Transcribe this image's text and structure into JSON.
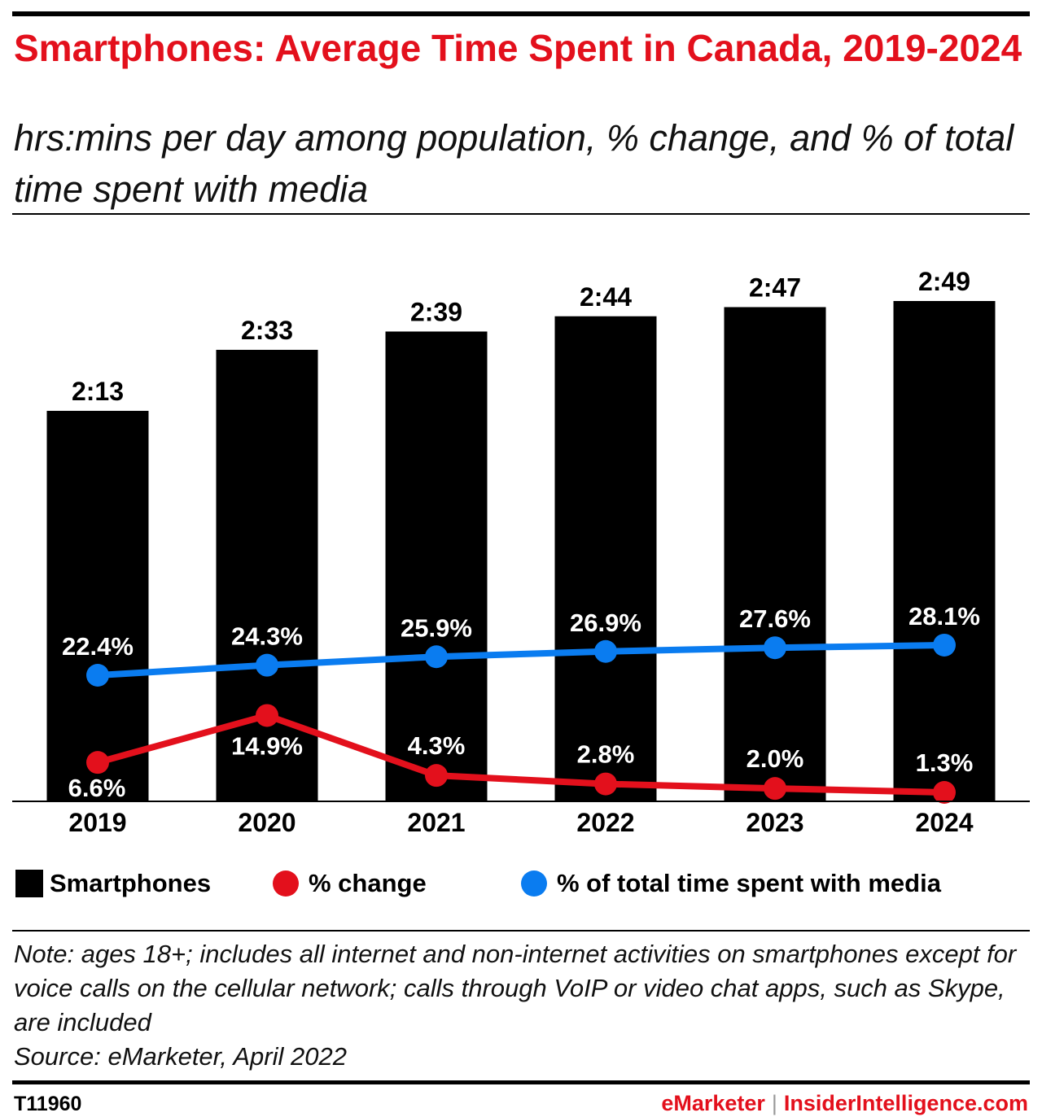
{
  "header": {
    "title": "Smartphones: Average Time Spent in Canada, 2019-2024",
    "subtitle": "hrs:mins per day among population, % change, and % of total time spent with media"
  },
  "chart_data": {
    "type": "bar",
    "categories": [
      "2019",
      "2020",
      "2021",
      "2022",
      "2023",
      "2024"
    ],
    "series": [
      {
        "name": "Smartphones",
        "kind": "bar",
        "values_minutes": [
          133,
          153,
          159,
          164,
          167,
          169
        ],
        "labels": [
          "2:13",
          "2:33",
          "2:39",
          "2:44",
          "2:47",
          "2:49"
        ],
        "color": "#000000"
      },
      {
        "name": "% change",
        "kind": "line",
        "values": [
          6.6,
          14.9,
          4.3,
          2.8,
          2.0,
          1.3
        ],
        "labels": [
          "6.6%",
          "14.9%",
          "4.3%",
          "2.8%",
          "2.0%",
          "1.3%"
        ],
        "color": "#e3101c"
      },
      {
        "name": "% of total time spent with media",
        "kind": "line",
        "values": [
          22.4,
          24.3,
          25.9,
          26.9,
          27.6,
          28.1
        ],
        "labels": [
          "22.4%",
          "24.3%",
          "25.9%",
          "26.9%",
          "27.6%",
          "28.1%"
        ],
        "color": "#0a7cf0"
      }
    ],
    "legend_placement": "bottom",
    "grid": false
  },
  "legend": {
    "bar_label": "Smartphones",
    "change_label": "% change",
    "share_label": "% of total time spent with media"
  },
  "footer": {
    "note": "Note: ages 18+; includes all internet and non-internet activities on smartphones except for voice calls on the cellular network; calls through VoIP or video chat apps, such as Skype, are included",
    "source": "Source: eMarketer, April 2022",
    "chart_id": "T11960",
    "brand_left": "eMarketer",
    "brand_sep": "|",
    "brand_right": "InsiderIntelligence.com"
  }
}
